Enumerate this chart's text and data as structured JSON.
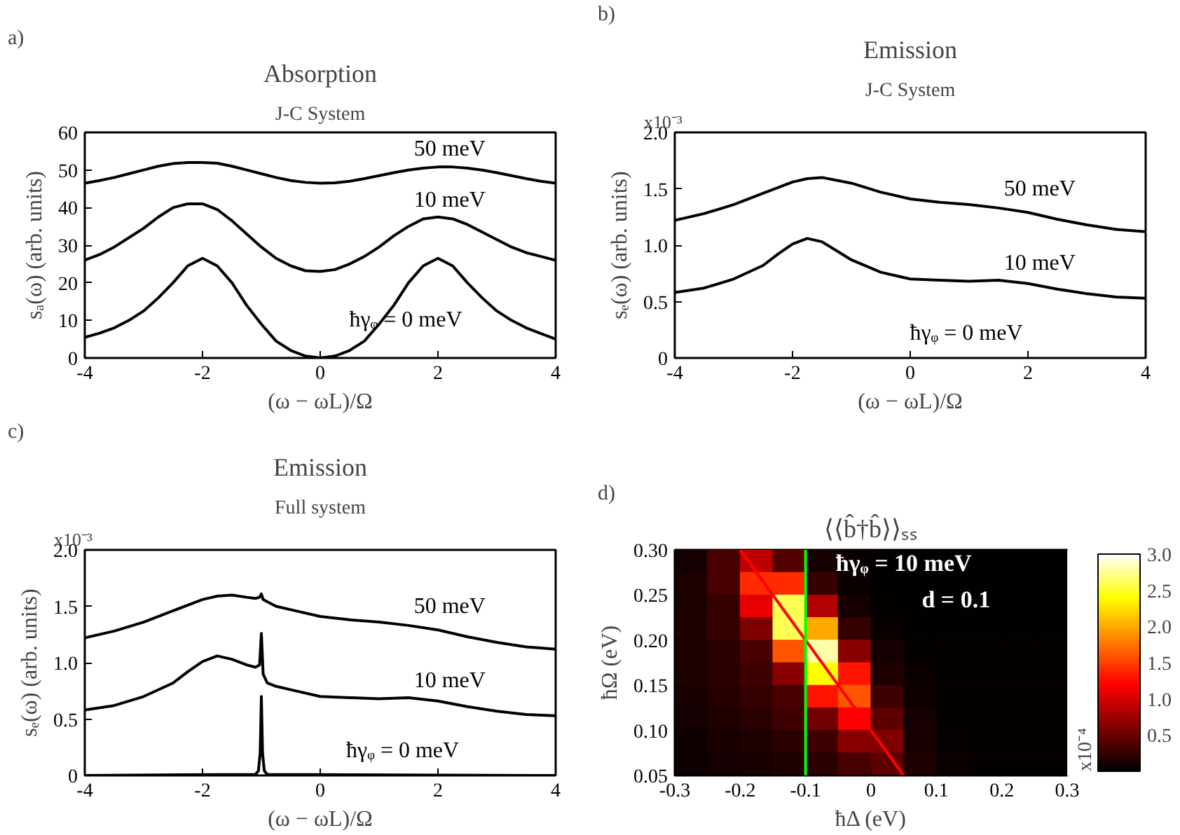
{
  "chart_data": [
    {
      "type": "line",
      "title": "Absorption",
      "subtitle": "J-C System",
      "xlabel": "(ω − ωL)/Ω",
      "ylabel": "sₐ(ω) (arb. units)",
      "xlim": [
        -4,
        4
      ],
      "ylim": [
        0,
        60
      ],
      "xticks": [
        -4,
        -2,
        0,
        2,
        4
      ],
      "yticks": [
        0,
        10,
        20,
        30,
        40,
        50,
        60
      ],
      "series": [
        {
          "color": "#000000",
          "x": [
            -4,
            -3.75,
            -3.5,
            -3.25,
            -3,
            -2.75,
            -2.5,
            -2.25,
            -2,
            -1.75,
            -1.5,
            -1.25,
            -1,
            -0.75,
            -0.5,
            -0.25,
            0,
            0.25,
            0.5,
            0.75,
            1,
            1.25,
            1.5,
            1.75,
            2,
            2.25,
            2.5,
            2.75,
            3,
            3.25,
            3.5,
            3.75,
            4
          ],
          "values": [
            5.5,
            6.6,
            8,
            10,
            12.5,
            16,
            20,
            24.5,
            26.5,
            24.5,
            20,
            14,
            9,
            4.5,
            2,
            0.5,
            0,
            0.5,
            2,
            4.5,
            9,
            14,
            20,
            24.5,
            26.5,
            24.5,
            20,
            16,
            12.5,
            10,
            8,
            6.5,
            5
          ]
        },
        {
          "color": "#000000",
          "x": [
            -4,
            -3.75,
            -3.5,
            -3.25,
            -3,
            -2.75,
            -2.5,
            -2.25,
            -2,
            -1.75,
            -1.5,
            -1.25,
            -1,
            -0.75,
            -0.5,
            -0.25,
            0,
            0.25,
            0.5,
            0.75,
            1,
            1.25,
            1.5,
            1.75,
            2,
            2.25,
            2.5,
            2.75,
            3,
            3.25,
            3.5,
            3.75,
            4
          ],
          "values": [
            26,
            27.5,
            29.5,
            32,
            34.5,
            37.5,
            40,
            41,
            41,
            39.5,
            36.5,
            33,
            29.5,
            26.5,
            24.5,
            23.2,
            23,
            23.5,
            25,
            27,
            29.5,
            32.5,
            35,
            37,
            37.5,
            37,
            35.5,
            33.5,
            31.5,
            29.5,
            28,
            27,
            26
          ]
        },
        {
          "color": "#000000",
          "x": [
            -4,
            -3.75,
            -3.5,
            -3.25,
            -3,
            -2.75,
            -2.5,
            -2.25,
            -2,
            -1.75,
            -1.5,
            -1.25,
            -1,
            -0.75,
            -0.5,
            -0.25,
            0,
            0.25,
            0.5,
            0.75,
            1,
            1.25,
            1.5,
            1.75,
            2,
            2.25,
            2.5,
            2.75,
            3,
            3.25,
            3.5,
            3.75,
            4
          ],
          "values": [
            46.5,
            47.2,
            48,
            49,
            50,
            51,
            51.7,
            52,
            52,
            51.8,
            51,
            50,
            49,
            48,
            47.2,
            46.7,
            46.5,
            46.6,
            47,
            47.7,
            48.5,
            49.3,
            50,
            50.5,
            50.8,
            50.8,
            50.5,
            50,
            49.3,
            48.5,
            47.7,
            47,
            46.5
          ]
        }
      ],
      "annotations": [
        "a)",
        "50 meV",
        "10 meV",
        "ħγᵩ =  0 meV"
      ]
    },
    {
      "type": "line",
      "title": "Emission",
      "subtitle": "J-C System",
      "xlabel": "(ω − ωL)/Ω",
      "ylabel": "sₑ(ω) (arb. units)",
      "xlim": [
        -4,
        4
      ],
      "ylim": [
        0,
        2
      ],
      "xticks": [
        -4,
        -2,
        0,
        2,
        4
      ],
      "yticks": [
        0,
        0.5,
        {
          "value": 1,
          "label": "1.0"
        },
        1.5,
        {
          "value": 2,
          "label": "2.0"
        }
      ],
      "series": [
        {
          "color": "#000000",
          "x": [
            -4,
            -3.5,
            -3,
            -2.5,
            -2.25,
            -2,
            -1.75,
            -1.5,
            -1.25,
            -1,
            -0.5,
            0,
            0.5,
            1,
            1.5,
            2,
            2.5,
            3,
            3.5,
            4
          ],
          "values": [
            0.58,
            0.62,
            0.7,
            0.82,
            0.92,
            1.01,
            1.06,
            1.03,
            0.95,
            0.87,
            0.76,
            0.7,
            0.69,
            0.68,
            0.69,
            0.66,
            0.61,
            0.57,
            0.54,
            0.53
          ]
        },
        {
          "color": "#000000",
          "x": [
            -4,
            -3.5,
            -3,
            -2.5,
            -2,
            -1.75,
            -1.5,
            -1,
            -0.5,
            0,
            0.5,
            1,
            1.5,
            2,
            2.5,
            3,
            3.5,
            4
          ],
          "values": [
            1.22,
            1.28,
            1.36,
            1.46,
            1.56,
            1.59,
            1.6,
            1.55,
            1.47,
            1.41,
            1.38,
            1.36,
            1.33,
            1.29,
            1.23,
            1.18,
            1.14,
            1.12
          ]
        }
      ],
      "annotations": [
        "b)",
        "x10⁻³",
        "50 meV",
        "10 meV",
        "ħγᵩ =  0 meV"
      ]
    },
    {
      "type": "line",
      "title": "Emission",
      "subtitle": "Full system",
      "xlabel": "(ω − ωL)/Ω",
      "ylabel": "sₑ(ω) (arb. units)",
      "xlim": [
        -4,
        4
      ],
      "ylim": [
        0,
        2
      ],
      "xticks": [
        -4,
        -2,
        0,
        2,
        4
      ],
      "yticks": [
        0,
        0.5,
        {
          "value": 1,
          "label": "1.0"
        },
        1.5,
        {
          "value": 2,
          "label": "2.0"
        }
      ],
      "series": [
        {
          "color": "#000000",
          "x": [
            -4,
            -1.1,
            -1.05,
            -1.02,
            -1,
            -0.98,
            -0.95,
            -0.9,
            4
          ],
          "values": [
            0,
            0.01,
            0.04,
            0.2,
            0.7,
            0.2,
            0.04,
            0.01,
            0
          ]
        },
        {
          "color": "#000000",
          "x": [
            -4,
            -3.5,
            -3,
            -2.5,
            -2.25,
            -2,
            -1.75,
            -1.5,
            -1.25,
            -1.1,
            -1.03,
            -1,
            -0.97,
            -0.9,
            -0.75,
            -0.5,
            0,
            0.5,
            1,
            1.5,
            2,
            2.5,
            3,
            3.5,
            4
          ],
          "values": [
            0.58,
            0.62,
            0.7,
            0.82,
            0.92,
            1.01,
            1.06,
            1.03,
            0.98,
            0.96,
            0.98,
            1.26,
            0.9,
            0.82,
            0.79,
            0.76,
            0.7,
            0.69,
            0.68,
            0.69,
            0.66,
            0.61,
            0.57,
            0.54,
            0.53
          ]
        },
        {
          "color": "#000000",
          "x": [
            -4,
            -3.5,
            -3,
            -2.5,
            -2.25,
            -2,
            -1.75,
            -1.5,
            -1.25,
            -1.1,
            -1.03,
            -1,
            -0.97,
            -0.9,
            -0.75,
            -0.5,
            0,
            0.5,
            1,
            1.5,
            2,
            2.5,
            3,
            3.5,
            4
          ],
          "values": [
            1.22,
            1.28,
            1.36,
            1.46,
            1.51,
            1.56,
            1.59,
            1.6,
            1.58,
            1.57,
            1.58,
            1.61,
            1.56,
            1.54,
            1.5,
            1.47,
            1.41,
            1.38,
            1.36,
            1.33,
            1.29,
            1.23,
            1.18,
            1.14,
            1.12
          ]
        }
      ],
      "annotations": [
        "c)",
        "x10⁻³",
        "50 meV",
        "10 meV",
        "ħγᵩ = 0 meV"
      ]
    },
    {
      "type": "heatmap",
      "title": "⟨⟨b̂†b̂⟩⟩ₛₛ",
      "xlabel": "ħΔ (eV)",
      "ylabel": "ħΩ (eV)",
      "xlim": [
        -0.3,
        0.3
      ],
      "ylim": [
        0.05,
        0.3
      ],
      "xticks": [
        -0.3,
        -0.2,
        -0.1,
        0,
        0.1,
        0.2,
        0.3
      ],
      "yticks": [
        0.05,
        {
          "value": 0.1,
          "label": "0.10"
        },
        0.15,
        {
          "value": 0.2,
          "label": "0.20"
        },
        0.25,
        {
          "value": 0.3,
          "label": "0.30"
        }
      ],
      "x": [
        -0.275,
        -0.225,
        -0.175,
        -0.125,
        -0.075,
        -0.025,
        0.025,
        0.075,
        0.125,
        0.175,
        0.225,
        0.275
      ],
      "y": [
        0.2875,
        0.2625,
        0.2375,
        0.2125,
        0.1875,
        0.1625,
        0.1375,
        0.1125,
        0.0875,
        0.0625
      ],
      "cells": [
        [
          0.1,
          0.35,
          0.9,
          0.4,
          0.1,
          0.05,
          0.02,
          0.02,
          0.02,
          0.02,
          0.02,
          0.02
        ],
        [
          0.15,
          0.35,
          1.4,
          1.4,
          0.25,
          0.05,
          0.02,
          0.02,
          0.02,
          0.02,
          0.02,
          0.02
        ],
        [
          0.15,
          0.25,
          1.1,
          2.6,
          0.85,
          0.1,
          0.03,
          0.02,
          0.02,
          0.02,
          0.02,
          0.02
        ],
        [
          0.15,
          0.25,
          0.6,
          2.6,
          2.0,
          0.25,
          0.05,
          0.02,
          0.02,
          0.02,
          0.02,
          0.02
        ],
        [
          0.15,
          0.2,
          0.35,
          1.6,
          2.8,
          0.65,
          0.1,
          0.03,
          0.03,
          0.03,
          0.03,
          0.03
        ],
        [
          0.15,
          0.2,
          0.3,
          0.65,
          2.4,
          1.3,
          0.15,
          0.05,
          0.03,
          0.03,
          0.03,
          0.03
        ],
        [
          0.12,
          0.18,
          0.25,
          0.35,
          1.3,
          1.6,
          0.3,
          0.08,
          0.03,
          0.03,
          0.03,
          0.03
        ],
        [
          0.1,
          0.15,
          0.2,
          0.3,
          0.55,
          1.2,
          0.45,
          0.1,
          0.03,
          0.03,
          0.03,
          0.03
        ],
        [
          0.08,
          0.12,
          0.15,
          0.2,
          0.3,
          0.65,
          0.6,
          0.12,
          0.04,
          0.03,
          0.03,
          0.03
        ],
        [
          0.06,
          0.1,
          0.12,
          0.15,
          0.2,
          0.35,
          0.45,
          0.15,
          0.05,
          0.03,
          0.03,
          0.03
        ]
      ],
      "clim": [
        0,
        3
      ],
      "cticks": [
        0.5,
        {
          "value": 1,
          "label": "1.0"
        },
        1.5,
        {
          "value": 2,
          "label": "2.0"
        },
        2.5,
        {
          "value": 3,
          "label": "3.0"
        }
      ],
      "clabel": "x10⁻⁴",
      "series": [
        {
          "type": "line",
          "color": "#ff0000",
          "x": [
            -0.2,
            0.05
          ],
          "values": [
            0.3,
            0.05
          ]
        }
      ],
      "ref_lines": [
        {
          "axis": "x",
          "value": -0.1,
          "color": "#00ff00"
        }
      ],
      "annotations": [
        "d)",
        "ħγᵩ = 10 meV",
        "d = 0.1"
      ]
    }
  ]
}
